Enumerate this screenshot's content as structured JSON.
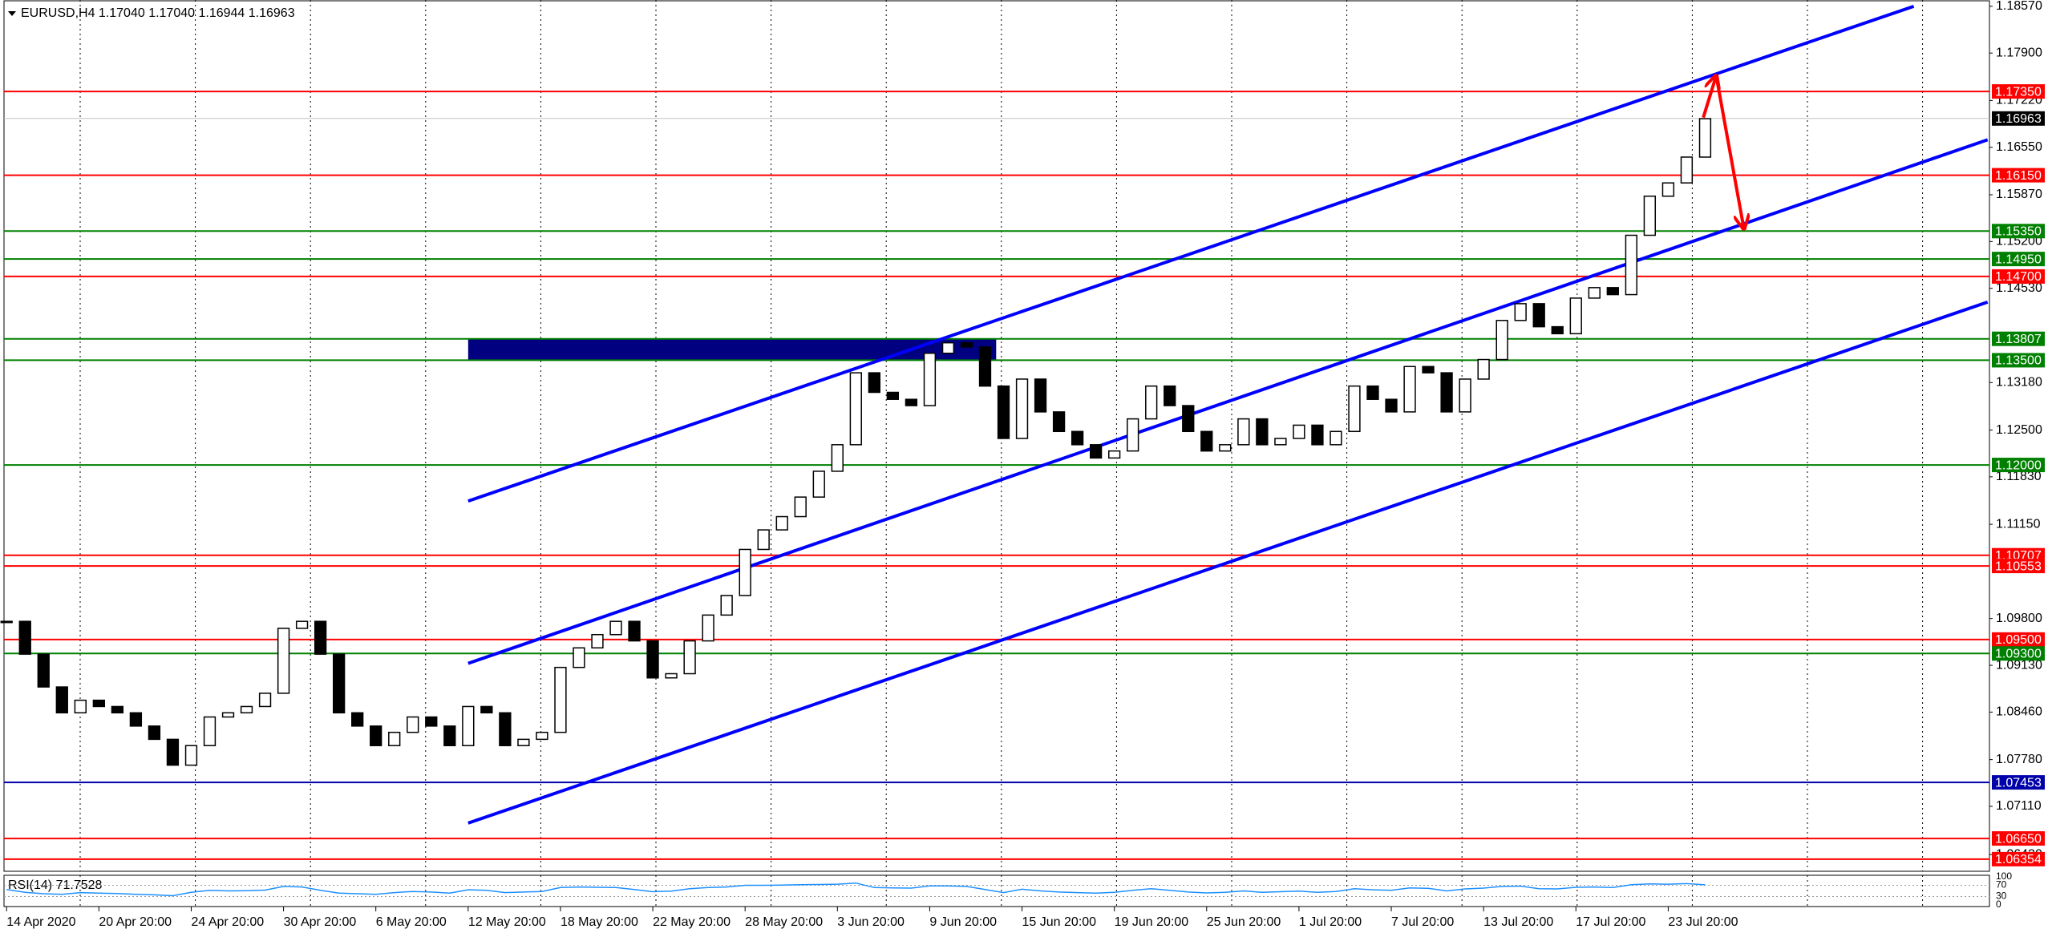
{
  "chart_data": {
    "type": "candlestick",
    "title": "EURUSD,H4 1.17040 1.17040 1.16944 1.16963",
    "categories": [
      "14 Apr 2020",
      null,
      null,
      null,
      null,
      "20 Apr 20:00",
      null,
      null,
      null,
      null,
      "24 Apr 20:00",
      null,
      null,
      null,
      null,
      "30 Apr 20:00",
      null,
      null,
      null,
      null,
      "6 May 20:00",
      null,
      null,
      null,
      null,
      "12 May 20:00",
      null,
      null,
      null,
      null,
      "18 May 20:00",
      null,
      null,
      null,
      null,
      "22 May 20:00",
      null,
      null,
      null,
      null,
      "28 May 20:00",
      null,
      null,
      null,
      null,
      "3 Jun 20:00",
      null,
      null,
      null,
      null,
      "9 Jun 20:00",
      null,
      null,
      null,
      null,
      "15 Jun 20:00",
      null,
      null,
      null,
      null,
      "19 Jun 20:00",
      null,
      null,
      null,
      null,
      "25 Jun 20:00",
      null,
      null,
      null,
      null,
      "1 Jul 20:00",
      null,
      null,
      null,
      null,
      "7 Jul 20:00",
      null,
      null,
      null,
      null,
      "13 Jul 20:00",
      null,
      null,
      null,
      null,
      "17 Jul 20:00",
      null,
      null,
      null,
      null,
      "23 Jul 20:00",
      null,
      null
    ],
    "close": [
      1.0976,
      1.0929,
      1.0882,
      1.0845,
      1.0863,
      1.0854,
      1.0845,
      1.0826,
      1.0807,
      1.077,
      1.0798,
      1.0839,
      1.0845,
      1.0854,
      1.0873,
      1.0966,
      1.0976,
      1.0929,
      1.0845,
      1.0826,
      1.0798,
      1.0817,
      1.0839,
      1.0826,
      1.0798,
      1.0854,
      1.0845,
      1.0798,
      1.0807,
      1.0817,
      1.091,
      1.0938,
      1.0957,
      1.0976,
      1.0948,
      1.0895,
      1.0901,
      1.0948,
      1.0985,
      1.1013,
      1.1079,
      1.1107,
      1.1126,
      1.1154,
      1.1191,
      1.1229,
      1.1332,
      1.1304,
      1.1294,
      1.1285,
      1.136,
      1.1375,
      1.1369,
      1.1313,
      1.1238,
      1.1323,
      1.1276,
      1.1248,
      1.1229,
      1.121,
      1.122,
      1.1266,
      1.1313,
      1.1285,
      1.1248,
      1.122,
      1.1229,
      1.1266,
      1.1229,
      1.1238,
      1.1257,
      1.1229,
      1.1248,
      1.1313,
      1.1294,
      1.1276,
      1.1341,
      1.1332,
      1.1276,
      1.1323,
      1.1351,
      1.1407,
      1.1431,
      1.1398,
      1.1388,
      1.1439,
      1.1454,
      1.1444,
      1.1529,
      1.1585,
      1.1604,
      1.1641,
      1.1696
    ],
    "xlim": [
      -0.14,
      107.4
    ],
    "ylim": [
      1.0618,
      1.1866
    ],
    "yticks": [
      {
        "value": 1.1857,
        "label": "1.18570"
      },
      {
        "value": 1.179,
        "label": "1.17900"
      },
      {
        "value": 1.1722,
        "label": "1.17220"
      },
      {
        "value": 1.1655,
        "label": "1.16550"
      },
      {
        "value": 1.1587,
        "label": "1.15870"
      },
      {
        "value": 1.152,
        "label": "1.15200"
      },
      {
        "value": 1.1453,
        "label": "1.14530"
      },
      {
        "value": 1.1318,
        "label": "1.13180"
      },
      {
        "value": 1.125,
        "label": "1.12500"
      },
      {
        "value": 1.1183,
        "label": "1.11830"
      },
      {
        "value": 1.1115,
        "label": "1.11150"
      },
      {
        "value": 1.098,
        "label": "1.09800"
      },
      {
        "value": 1.0913,
        "label": "1.09130"
      },
      {
        "value": 1.0846,
        "label": "1.08460"
      },
      {
        "value": 1.0778,
        "label": "1.07780"
      },
      {
        "value": 1.0711,
        "label": "1.07110"
      },
      {
        "value": 1.0642,
        "label": "1.06420"
      }
    ],
    "grid": true,
    "levels": [
      {
        "value": 1.1735,
        "label": "1.17350",
        "color": "#ff0000"
      },
      {
        "value": 1.1615,
        "label": "1.16150",
        "color": "#ff0000"
      },
      {
        "value": 1.1535,
        "label": "1.15350",
        "color": "#008000"
      },
      {
        "value": 1.1495,
        "label": "1.14950",
        "color": "#008000"
      },
      {
        "value": 1.147,
        "label": "1.14700",
        "color": "#ff0000"
      },
      {
        "value": 1.13807,
        "label": "1.13807",
        "color": "#008000"
      },
      {
        "value": 1.135,
        "label": "1.13500",
        "color": "#008000"
      },
      {
        "value": 1.12,
        "label": "1.12000",
        "color": "#008000"
      },
      {
        "value": 1.10707,
        "label": "1.10707",
        "color": "#ff0000"
      },
      {
        "value": 1.10553,
        "label": "1.10553",
        "color": "#ff0000"
      },
      {
        "value": 1.095,
        "label": "1.09500",
        "color": "#ff0000"
      },
      {
        "value": 1.093,
        "label": "1.09300",
        "color": "#008000"
      },
      {
        "value": 1.07453,
        "label": "1.07453",
        "color": "#0000aa"
      },
      {
        "value": 1.0665,
        "label": "1.06650",
        "color": "#ff0000"
      },
      {
        "value": 1.06354,
        "label": "1.06354",
        "color": "#ff0000"
      }
    ],
    "current": {
      "value": 1.16963,
      "label": "1.16963",
      "color": "#000000"
    },
    "trendlines": [
      {
        "x": [
          25,
          103.3
        ],
        "y": [
          1.11483,
          1.1857
        ],
        "color": "#0000ff"
      },
      {
        "x": [
          25,
          107.3
        ],
        "y": [
          1.09158,
          1.16658
        ],
        "color": "#0000ff"
      },
      {
        "x": [
          25,
          107.3
        ],
        "y": [
          1.0687,
          1.14333
        ],
        "color": "#0000ff"
      }
    ],
    "zones": [
      {
        "x": [
          25,
          53.6
        ],
        "y": [
          1.13807,
          1.135
        ],
        "color": "#000080"
      }
    ],
    "arrows": [
      {
        "x": [
          91.9,
          92.6,
          94.1
        ],
        "y": [
          1.16976,
          1.17576,
          1.15383
        ],
        "color": "#ff0000"
      }
    ],
    "rsi": {
      "label": "RSI(14) 71.7528",
      "ylim": [
        0,
        100
      ],
      "yticks": [
        100,
        70,
        30,
        0
      ],
      "color": "#1e90ff",
      "values": [
        55,
        45,
        40,
        38,
        44,
        42,
        41,
        38,
        36,
        33,
        45,
        52,
        50,
        51,
        53,
        66,
        64,
        52,
        42,
        40,
        38,
        44,
        48,
        46,
        42,
        54,
        52,
        44,
        46,
        48,
        62,
        64,
        63,
        62,
        55,
        47,
        49,
        58,
        62,
        64,
        70,
        70,
        71,
        72,
        73,
        74,
        78,
        62,
        61,
        60,
        68,
        68,
        66,
        55,
        44,
        56,
        50,
        46,
        44,
        42,
        45,
        52,
        58,
        52,
        46,
        43,
        45,
        50,
        45,
        47,
        49,
        45,
        48,
        58,
        54,
        52,
        61,
        59,
        50,
        57,
        60,
        66,
        67,
        58,
        57,
        63,
        64,
        62,
        72,
        75,
        74,
        76,
        71.7528
      ]
    }
  }
}
